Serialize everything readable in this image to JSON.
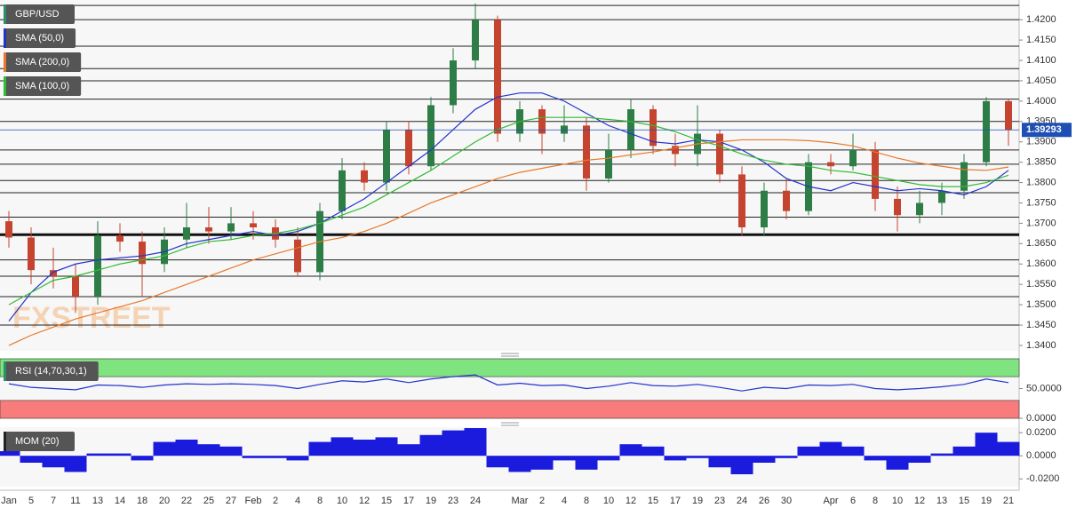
{
  "chart_data": [
    {
      "type": "candlestick",
      "title": "GBP/USD",
      "watermark": "FXSTREET",
      "categories": [
        "Jan",
        "5",
        "7",
        "11",
        "13",
        "14",
        "18",
        "20",
        "22",
        "25",
        "27",
        "Feb",
        "2",
        "4",
        "8",
        "10",
        "12",
        "15",
        "17",
        "19",
        "23",
        "24",
        null,
        "Mar",
        "2",
        "4",
        "8",
        "10",
        "12",
        "15",
        "17",
        "19",
        "23",
        "24",
        "26",
        "30",
        null,
        "Apr",
        "6",
        "8",
        "10",
        "12",
        "13",
        "15",
        "19",
        "21"
      ],
      "open": [
        1.3705,
        1.3665,
        1.3585,
        1.357,
        1.352,
        1.367,
        1.3655,
        1.36,
        1.366,
        1.369,
        1.368,
        1.37,
        1.369,
        1.366,
        1.358,
        1.373,
        1.383,
        1.38,
        1.393,
        1.384,
        1.399,
        1.41,
        1.42,
        1.392,
        1.398,
        1.392,
        1.394,
        1.381,
        1.388,
        1.398,
        1.389,
        1.387,
        1.392,
        1.382,
        1.369,
        1.378,
        1.373,
        1.385,
        1.384,
        1.388,
        1.376,
        1.372,
        1.375,
        1.378,
        1.385,
        1.4
      ],
      "high": [
        1.373,
        1.369,
        1.364,
        1.36,
        1.3705,
        1.37,
        1.368,
        1.369,
        1.375,
        1.374,
        1.374,
        1.373,
        1.371,
        1.369,
        1.375,
        1.386,
        1.385,
        1.395,
        1.395,
        1.401,
        1.413,
        1.424,
        1.421,
        1.4,
        1.399,
        1.399,
        1.396,
        1.392,
        1.4005,
        1.399,
        1.392,
        1.399,
        1.393,
        1.384,
        1.38,
        1.381,
        1.387,
        1.387,
        1.392,
        1.39,
        1.379,
        1.378,
        1.38,
        1.387,
        1.401,
        1.4005
      ],
      "low": [
        1.364,
        1.355,
        1.354,
        1.348,
        1.35,
        1.363,
        1.352,
        1.358,
        1.364,
        1.365,
        1.366,
        1.366,
        1.364,
        1.357,
        1.356,
        1.371,
        1.378,
        1.378,
        1.382,
        1.383,
        1.397,
        1.408,
        1.39,
        1.39,
        1.387,
        1.39,
        1.378,
        1.38,
        1.386,
        1.387,
        1.384,
        1.384,
        1.38,
        1.367,
        1.367,
        1.371,
        1.372,
        1.382,
        1.383,
        1.373,
        1.368,
        1.37,
        1.372,
        1.376,
        1.384,
        1.389
      ],
      "close": [
        1.3665,
        1.3585,
        1.357,
        1.352,
        1.367,
        1.3655,
        1.36,
        1.366,
        1.369,
        1.368,
        1.37,
        1.369,
        1.366,
        1.358,
        1.373,
        1.383,
        1.38,
        1.393,
        1.384,
        1.399,
        1.41,
        1.42,
        1.392,
        1.398,
        1.392,
        1.394,
        1.381,
        1.388,
        1.398,
        1.389,
        1.387,
        1.392,
        1.382,
        1.369,
        1.378,
        1.373,
        1.385,
        1.384,
        1.388,
        1.376,
        1.372,
        1.375,
        1.378,
        1.385,
        1.4,
        1.3929
      ],
      "up_color": "#2e7d46",
      "down_color": "#c4442f",
      "series": [
        {
          "name": "SMA (50,0)",
          "color": "#2233cc",
          "values": [
            1.346,
            1.353,
            1.358,
            1.36,
            1.361,
            1.3615,
            1.362,
            1.363,
            1.365,
            1.366,
            1.367,
            1.368,
            1.367,
            1.368,
            1.37,
            1.373,
            1.376,
            1.38,
            1.384,
            1.388,
            1.393,
            1.398,
            1.401,
            1.402,
            1.402,
            1.4,
            1.397,
            1.394,
            1.392,
            1.39,
            1.3895,
            1.3905,
            1.39,
            1.388,
            1.385,
            1.381,
            1.379,
            1.378,
            1.38,
            1.379,
            1.378,
            1.3785,
            1.378,
            1.377,
            1.379,
            1.383
          ]
        },
        {
          "name": "SMA (200,0)",
          "color": "#e8792b",
          "values": [
            1.34,
            1.3425,
            1.3445,
            1.3465,
            1.348,
            1.3495,
            1.351,
            1.353,
            1.355,
            1.357,
            1.359,
            1.361,
            1.3625,
            1.364,
            1.3655,
            1.3665,
            1.368,
            1.37,
            1.3725,
            1.375,
            1.377,
            1.379,
            1.381,
            1.3825,
            1.3835,
            1.3845,
            1.3855,
            1.386,
            1.3868,
            1.3875,
            1.3885,
            1.3895,
            1.39,
            1.3905,
            1.3905,
            1.3905,
            1.3903,
            1.3898,
            1.389,
            1.3875,
            1.386,
            1.3848,
            1.384,
            1.3832,
            1.383,
            1.3838
          ]
        },
        {
          "name": "SMA (100,0)",
          "color": "#33bb33",
          "values": [
            1.35,
            1.353,
            1.356,
            1.357,
            1.3585,
            1.36,
            1.361,
            1.362,
            1.364,
            1.3655,
            1.366,
            1.367,
            1.3675,
            1.3685,
            1.37,
            1.372,
            1.374,
            1.377,
            1.38,
            1.383,
            1.3865,
            1.39,
            1.393,
            1.395,
            1.396,
            1.396,
            1.396,
            1.3955,
            1.395,
            1.394,
            1.3925,
            1.3905,
            1.389,
            1.387,
            1.3855,
            1.3845,
            1.384,
            1.383,
            1.3825,
            1.3815,
            1.3805,
            1.3795,
            1.379,
            1.379,
            1.38,
            1.3818
          ]
        }
      ],
      "levels": [
        1.4235,
        1.42,
        1.4135,
        1.408,
        1.405,
        1.4005,
        1.395,
        1.388,
        1.3845,
        1.3805,
        1.3775,
        1.3715,
        1.361,
        1.357,
        1.352,
        1.345
      ],
      "key_level": 1.3672,
      "last_price": {
        "value": 1.39293,
        "label": "1.39293",
        "color": "#1f4fb3"
      },
      "ylim": [
        1.3389,
        1.4244
      ],
      "yticks": [
        {
          "value": 1.34,
          "label": "1.3400"
        },
        {
          "value": 1.345,
          "label": "1.3450"
        },
        {
          "value": 1.35,
          "label": "1.3500"
        },
        {
          "value": 1.355,
          "label": "1.3550"
        },
        {
          "value": 1.36,
          "label": "1.3600"
        },
        {
          "value": 1.365,
          "label": "1.3650"
        },
        {
          "value": 1.37,
          "label": "1.3700"
        },
        {
          "value": 1.375,
          "label": "1.3750"
        },
        {
          "value": 1.38,
          "label": "1.3800"
        },
        {
          "value": 1.385,
          "label": "1.3850"
        },
        {
          "value": 1.39,
          "label": "1.3900"
        },
        {
          "value": 1.395,
          "label": "1.3950"
        },
        {
          "value": 1.4,
          "label": "1.4000"
        },
        {
          "value": 1.405,
          "label": "1.4050"
        },
        {
          "value": 1.41,
          "label": "1.4100"
        },
        {
          "value": 1.415,
          "label": "1.4150"
        },
        {
          "value": 1.42,
          "label": "1.4200"
        }
      ]
    },
    {
      "type": "line",
      "title": "RSI (14,70,30,1)",
      "color": "#2233cc",
      "values": [
        58,
        52,
        50,
        48,
        56,
        55,
        52,
        56,
        58,
        57,
        58,
        57,
        55,
        50,
        57,
        63,
        61,
        66,
        60,
        66,
        70,
        73,
        56,
        59,
        55,
        56,
        50,
        54,
        60,
        55,
        54,
        57,
        52,
        46,
        52,
        50,
        56,
        55,
        57,
        50,
        48,
        50,
        53,
        57,
        66,
        60
      ],
      "overbought": 70,
      "oversold": 30,
      "overbought_color": "#7fe37f",
      "oversold_color": "#f87c7c",
      "ylim": [
        0,
        100
      ],
      "yticks": [
        {
          "value": 50,
          "label": "50.0000"
        },
        {
          "value": 0,
          "label": "0.0000"
        }
      ]
    },
    {
      "type": "bar",
      "title": "MOM (20)",
      "color": "#1b1bdd",
      "values": [
        0.004,
        -0.006,
        -0.01,
        -0.014,
        0.002,
        0.002,
        -0.004,
        0.012,
        0.014,
        0.01,
        0.008,
        -0.002,
        -0.002,
        -0.004,
        0.012,
        0.016,
        0.014,
        0.016,
        0.01,
        0.018,
        0.022,
        0.024,
        -0.01,
        -0.014,
        -0.012,
        -0.004,
        -0.012,
        -0.004,
        0.01,
        0.008,
        -0.004,
        -0.002,
        -0.01,
        -0.016,
        -0.006,
        -0.002,
        0.008,
        0.012,
        0.008,
        -0.004,
        -0.012,
        -0.006,
        0.002,
        0.008,
        0.02,
        0.012
      ],
      "ylim": [
        -0.026,
        0.024
      ],
      "yticks": [
        {
          "value": 0.02,
          "label": "0.0200"
        },
        {
          "value": 0,
          "label": "0.0000"
        },
        {
          "value": -0.02,
          "label": "-0.0200"
        }
      ]
    }
  ]
}
